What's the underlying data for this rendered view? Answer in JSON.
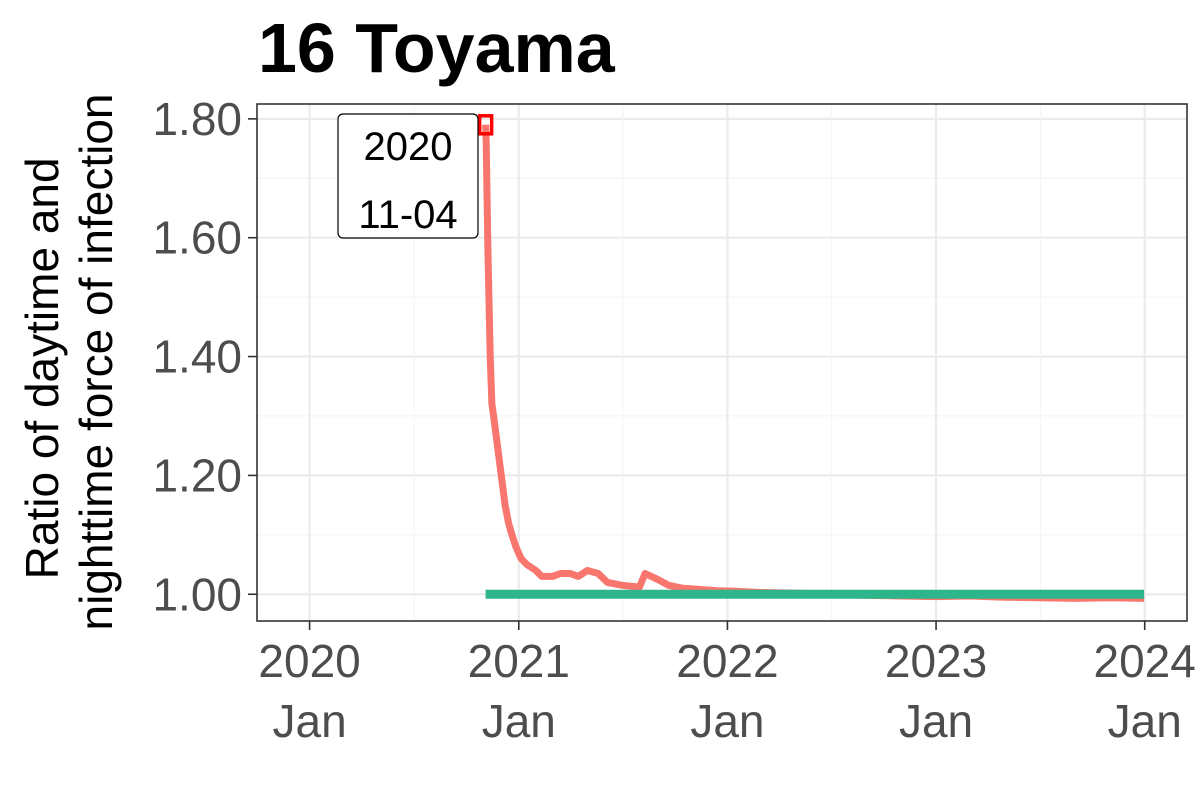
{
  "chart_data": {
    "type": "line",
    "title": "16 Toyama",
    "ylabel_lines": [
      "Ratio of daytime and",
      "nighttime force of infection"
    ],
    "xlabel": "",
    "y_ticks": [
      "1.00",
      "1.20",
      "1.40",
      "1.60",
      "1.80"
    ],
    "y_tick_values": [
      1.0,
      1.2,
      1.4,
      1.6,
      1.8
    ],
    "x_ticks": [
      {
        "date": "2020-01-01",
        "year": "2020",
        "month": "Jan"
      },
      {
        "date": "2021-01-01",
        "year": "2021",
        "month": "Jan"
      },
      {
        "date": "2022-01-01",
        "year": "2022",
        "month": "Jan"
      },
      {
        "date": "2023-01-01",
        "year": "2023",
        "month": "Jan"
      },
      {
        "date": "2024-01-01",
        "year": "2024",
        "month": "Jan"
      }
    ],
    "xlim": [
      "2019-10-01",
      "2024-03-15"
    ],
    "ylim": [
      0.955,
      1.825
    ],
    "grid": true,
    "legend": "none",
    "series": [
      {
        "color": "#F8766D",
        "x": [
          "2020-11-04",
          "2020-11-05",
          "2020-11-08",
          "2020-11-12",
          "2020-11-15",
          "2020-11-18",
          "2020-11-22",
          "2020-11-26",
          "2020-11-30",
          "2020-12-04",
          "2020-12-08",
          "2020-12-14",
          "2020-12-20",
          "2020-12-27",
          "2021-01-05",
          "2021-01-15",
          "2021-01-31",
          "2021-02-10",
          "2021-03-01",
          "2021-03-15",
          "2021-04-01",
          "2021-04-15",
          "2021-05-01",
          "2021-05-20",
          "2021-06-05",
          "2021-07-01",
          "2021-07-31",
          "2021-08-10",
          "2021-09-01",
          "2021-09-20",
          "2021-10-15",
          "2021-11-15",
          "2021-12-15",
          "2022-01-15",
          "2022-03-01",
          "2022-05-01",
          "2022-07-01",
          "2022-09-01",
          "2022-11-01",
          "2023-01-01",
          "2023-03-01",
          "2023-05-01",
          "2023-07-01",
          "2023-09-01",
          "2023-11-01",
          "2023-12-31"
        ],
        "y": [
          1.79,
          1.76,
          1.58,
          1.4,
          1.32,
          1.3,
          1.27,
          1.24,
          1.21,
          1.18,
          1.15,
          1.12,
          1.1,
          1.08,
          1.06,
          1.05,
          1.04,
          1.03,
          1.03,
          1.035,
          1.035,
          1.03,
          1.04,
          1.035,
          1.02,
          1.015,
          1.012,
          1.035,
          1.025,
          1.015,
          1.01,
          1.008,
          1.006,
          1.005,
          1.003,
          1.002,
          1.0,
          0.998,
          0.997,
          0.996,
          0.997,
          0.995,
          0.994,
          0.993,
          0.994,
          0.993
        ]
      },
      {
        "color": "#2DB68C",
        "x": [
          "2020-11-04",
          "2023-12-31"
        ],
        "y": [
          1.0,
          1.0
        ]
      }
    ],
    "annotation": {
      "lines": [
        "2020",
        "11-04"
      ],
      "date": "2020-11-04",
      "value": 1.79,
      "color": "#FF0000"
    }
  }
}
